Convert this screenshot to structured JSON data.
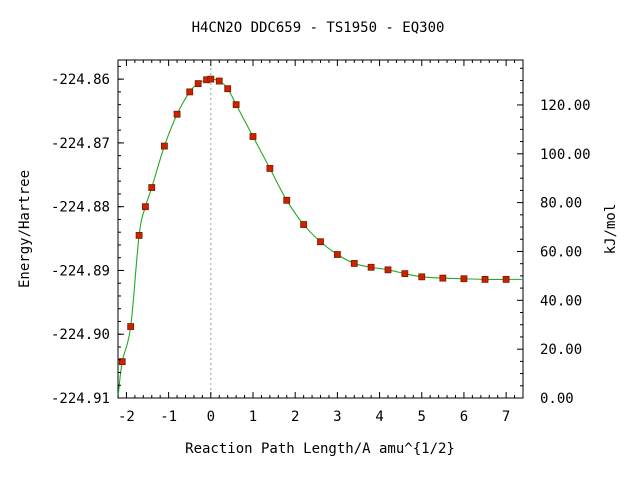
{
  "chart_data": {
    "type": "line",
    "title": "H4CN2O   DDC659 - TS1950 - EQ300",
    "xlabel": "Reaction Path Length/A amu^{1/2}",
    "ylabel": "Energy/Hartree",
    "y2label": "kJ/mol",
    "xlim": [
      -2.2,
      7.4
    ],
    "ylim": [
      -224.91,
      -224.857
    ],
    "y2lim": [
      0,
      138.4
    ],
    "x_ticks": [
      -2,
      -1,
      0,
      1,
      2,
      3,
      4,
      5,
      6,
      7
    ],
    "x_tick_labels": [
      "-2",
      "-1",
      "0",
      "1",
      "2",
      "3",
      "4",
      "5",
      "6",
      "7"
    ],
    "y_ticks": [
      -224.86,
      -224.87,
      -224.88,
      -224.89,
      -224.9,
      -224.91
    ],
    "y_tick_labels": [
      "-224.86",
      "-224.87",
      "-224.88",
      "-224.89",
      "-224.90",
      "-224.91"
    ],
    "y2_ticks": [
      120,
      100,
      80,
      60,
      40,
      20,
      0
    ],
    "y2_tick_labels": [
      "120.00",
      "100.00",
      "80.00",
      "60.00",
      "40.00",
      "20.00",
      "0.00"
    ],
    "ts_marker_x": 0,
    "grid": false,
    "colors": {
      "line": "#22aa22",
      "marker_fill": "#cc2200",
      "marker_edge": "#7a1a00",
      "ts_line": "#999999",
      "axes": "#000000"
    },
    "series": [
      {
        "x": [
          -2.2,
          -2.1,
          -1.9,
          -1.7,
          -1.55,
          -1.4,
          -1.1,
          -0.8,
          -0.5,
          -0.3,
          -0.1,
          0,
          0.2,
          0.4,
          0.6,
          1.0,
          1.4,
          1.8,
          2.2,
          2.6,
          3.0,
          3.4,
          3.8,
          4.2,
          4.6,
          5.0,
          5.5,
          6.0,
          6.5,
          7.0,
          7.4
        ],
        "y": [
          -224.91,
          -224.9043,
          -224.8988,
          -224.8845,
          -224.88,
          -224.877,
          -224.8705,
          -224.8655,
          -224.862,
          -224.8607,
          -224.8601,
          -224.86,
          -224.8603,
          -224.8615,
          -224.864,
          -224.869,
          -224.874,
          -224.879,
          -224.8828,
          -224.8855,
          -224.8875,
          -224.8889,
          -224.8895,
          -224.8899,
          -224.8905,
          -224.891,
          -224.8912,
          -224.8913,
          -224.8914,
          -224.8914,
          -224.8914
        ]
      }
    ]
  }
}
